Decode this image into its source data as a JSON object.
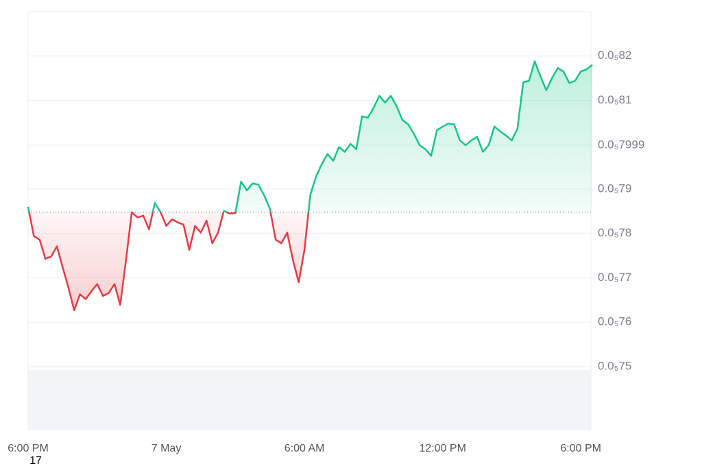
{
  "chart_data": {
    "type": "line",
    "x": [
      0,
      0.25,
      0.5,
      0.75,
      1,
      1.25,
      1.5,
      1.75,
      2,
      2.25,
      2.5,
      2.75,
      3,
      3.25,
      3.5,
      3.75,
      4,
      4.25,
      4.5,
      4.75,
      5,
      5.25,
      5.5,
      5.75,
      6,
      6.25,
      6.5,
      6.75,
      7,
      7.25,
      7.5,
      7.75,
      8,
      8.25,
      8.5,
      8.75,
      9,
      9.25,
      9.5,
      9.75,
      10,
      10.25,
      10.5,
      10.75,
      11,
      11.25,
      11.5,
      11.75,
      12,
      12.25,
      12.5,
      12.75,
      13,
      13.25,
      13.5,
      13.75,
      14,
      14.25,
      14.5,
      14.75,
      15,
      15.25,
      15.5,
      15.75,
      16,
      16.25,
      16.5,
      16.75,
      17,
      17.25,
      17.5,
      17.75,
      18,
      18.25,
      18.5,
      18.75,
      19,
      19.25,
      19.5,
      19.75,
      20,
      20.25,
      20.5,
      20.75,
      21,
      21.25,
      21.5,
      21.75,
      22,
      22.25,
      22.5,
      22.75,
      23,
      23.25,
      23.5,
      23.75,
      24,
      24.25,
      24.5
    ],
    "values": [
      7.86e-07,
      7.794e-07,
      7.786e-07,
      7.743e-07,
      7.748e-07,
      7.771e-07,
      7.724e-07,
      7.678e-07,
      7.627e-07,
      7.663e-07,
      7.652e-07,
      7.67e-07,
      7.686e-07,
      7.659e-07,
      7.666e-07,
      7.686e-07,
      7.639e-07,
      7.74e-07,
      7.848e-07,
      7.836e-07,
      7.84e-07,
      7.809e-07,
      7.869e-07,
      7.848e-07,
      7.817e-07,
      7.832e-07,
      7.825e-07,
      7.82e-07,
      7.763e-07,
      7.817e-07,
      7.802e-07,
      7.829e-07,
      7.778e-07,
      7.802e-07,
      7.851e-07,
      7.845e-07,
      7.846e-07,
      7.917e-07,
      7.897e-07,
      7.913e-07,
      7.91e-07,
      7.886e-07,
      7.856e-07,
      7.786e-07,
      7.778e-07,
      7.802e-07,
      7.74e-07,
      7.69e-07,
      7.763e-07,
      7.886e-07,
      7.928e-07,
      7.956e-07,
      7.979e-07,
      7.964e-07,
      7.995e-07,
      7.984e-07,
      8.002e-07,
      7.99e-07,
      8.064e-07,
      8.061e-07,
      8.083e-07,
      8.11e-07,
      8.095e-07,
      8.11e-07,
      8.087e-07,
      8.056e-07,
      8.046e-07,
      8.025e-07,
      7.999e-07,
      7.99e-07,
      7.975e-07,
      8.033e-07,
      8.041e-07,
      8.048e-07,
      8.046e-07,
      8.01e-07,
      7.999e-07,
      8.01e-07,
      8.018e-07,
      7.984e-07,
      7.999e-07,
      8.041e-07,
      8.03e-07,
      8.021e-07,
      8.01e-07,
      8.036e-07,
      8.141e-07,
      8.144e-07,
      8.188e-07,
      8.154e-07,
      8.123e-07,
      8.15e-07,
      8.173e-07,
      8.165e-07,
      8.139e-07,
      8.144e-07,
      8.165e-07,
      8.17e-07,
      8.18e-07
    ],
    "baseline": 7.848e-07,
    "up_color": "#16c784",
    "down_color": "#ea3943",
    "xlim": [
      0,
      24.5
    ],
    "xticks": [
      {
        "value": 0,
        "label": "6:00 PM"
      },
      {
        "value": 6,
        "label": "7 May"
      },
      {
        "value": 12,
        "label": "6:00 AM"
      },
      {
        "value": 18,
        "label": "12:00 PM"
      },
      {
        "value": 24,
        "label": "6:00 PM"
      }
    ],
    "date_label": "17",
    "ylim": [
      7.5e-07,
      8.3e-07
    ],
    "yticks": [
      {
        "value": 7.5e-07,
        "label": "0.0₅75"
      },
      {
        "value": 7.6e-07,
        "label": "0.0₅76"
      },
      {
        "value": 7.7e-07,
        "label": "0.0₅77"
      },
      {
        "value": 7.8e-07,
        "label": "0.0₅78"
      },
      {
        "value": 7.9e-07,
        "label": "0.0₅79"
      },
      {
        "value": 7.999e-07,
        "label": "0.0₅7999"
      },
      {
        "value": 8.1e-07,
        "label": "0.0₅81"
      },
      {
        "value": 8.2e-07,
        "label": "0.0₅82"
      }
    ],
    "grid": true
  }
}
